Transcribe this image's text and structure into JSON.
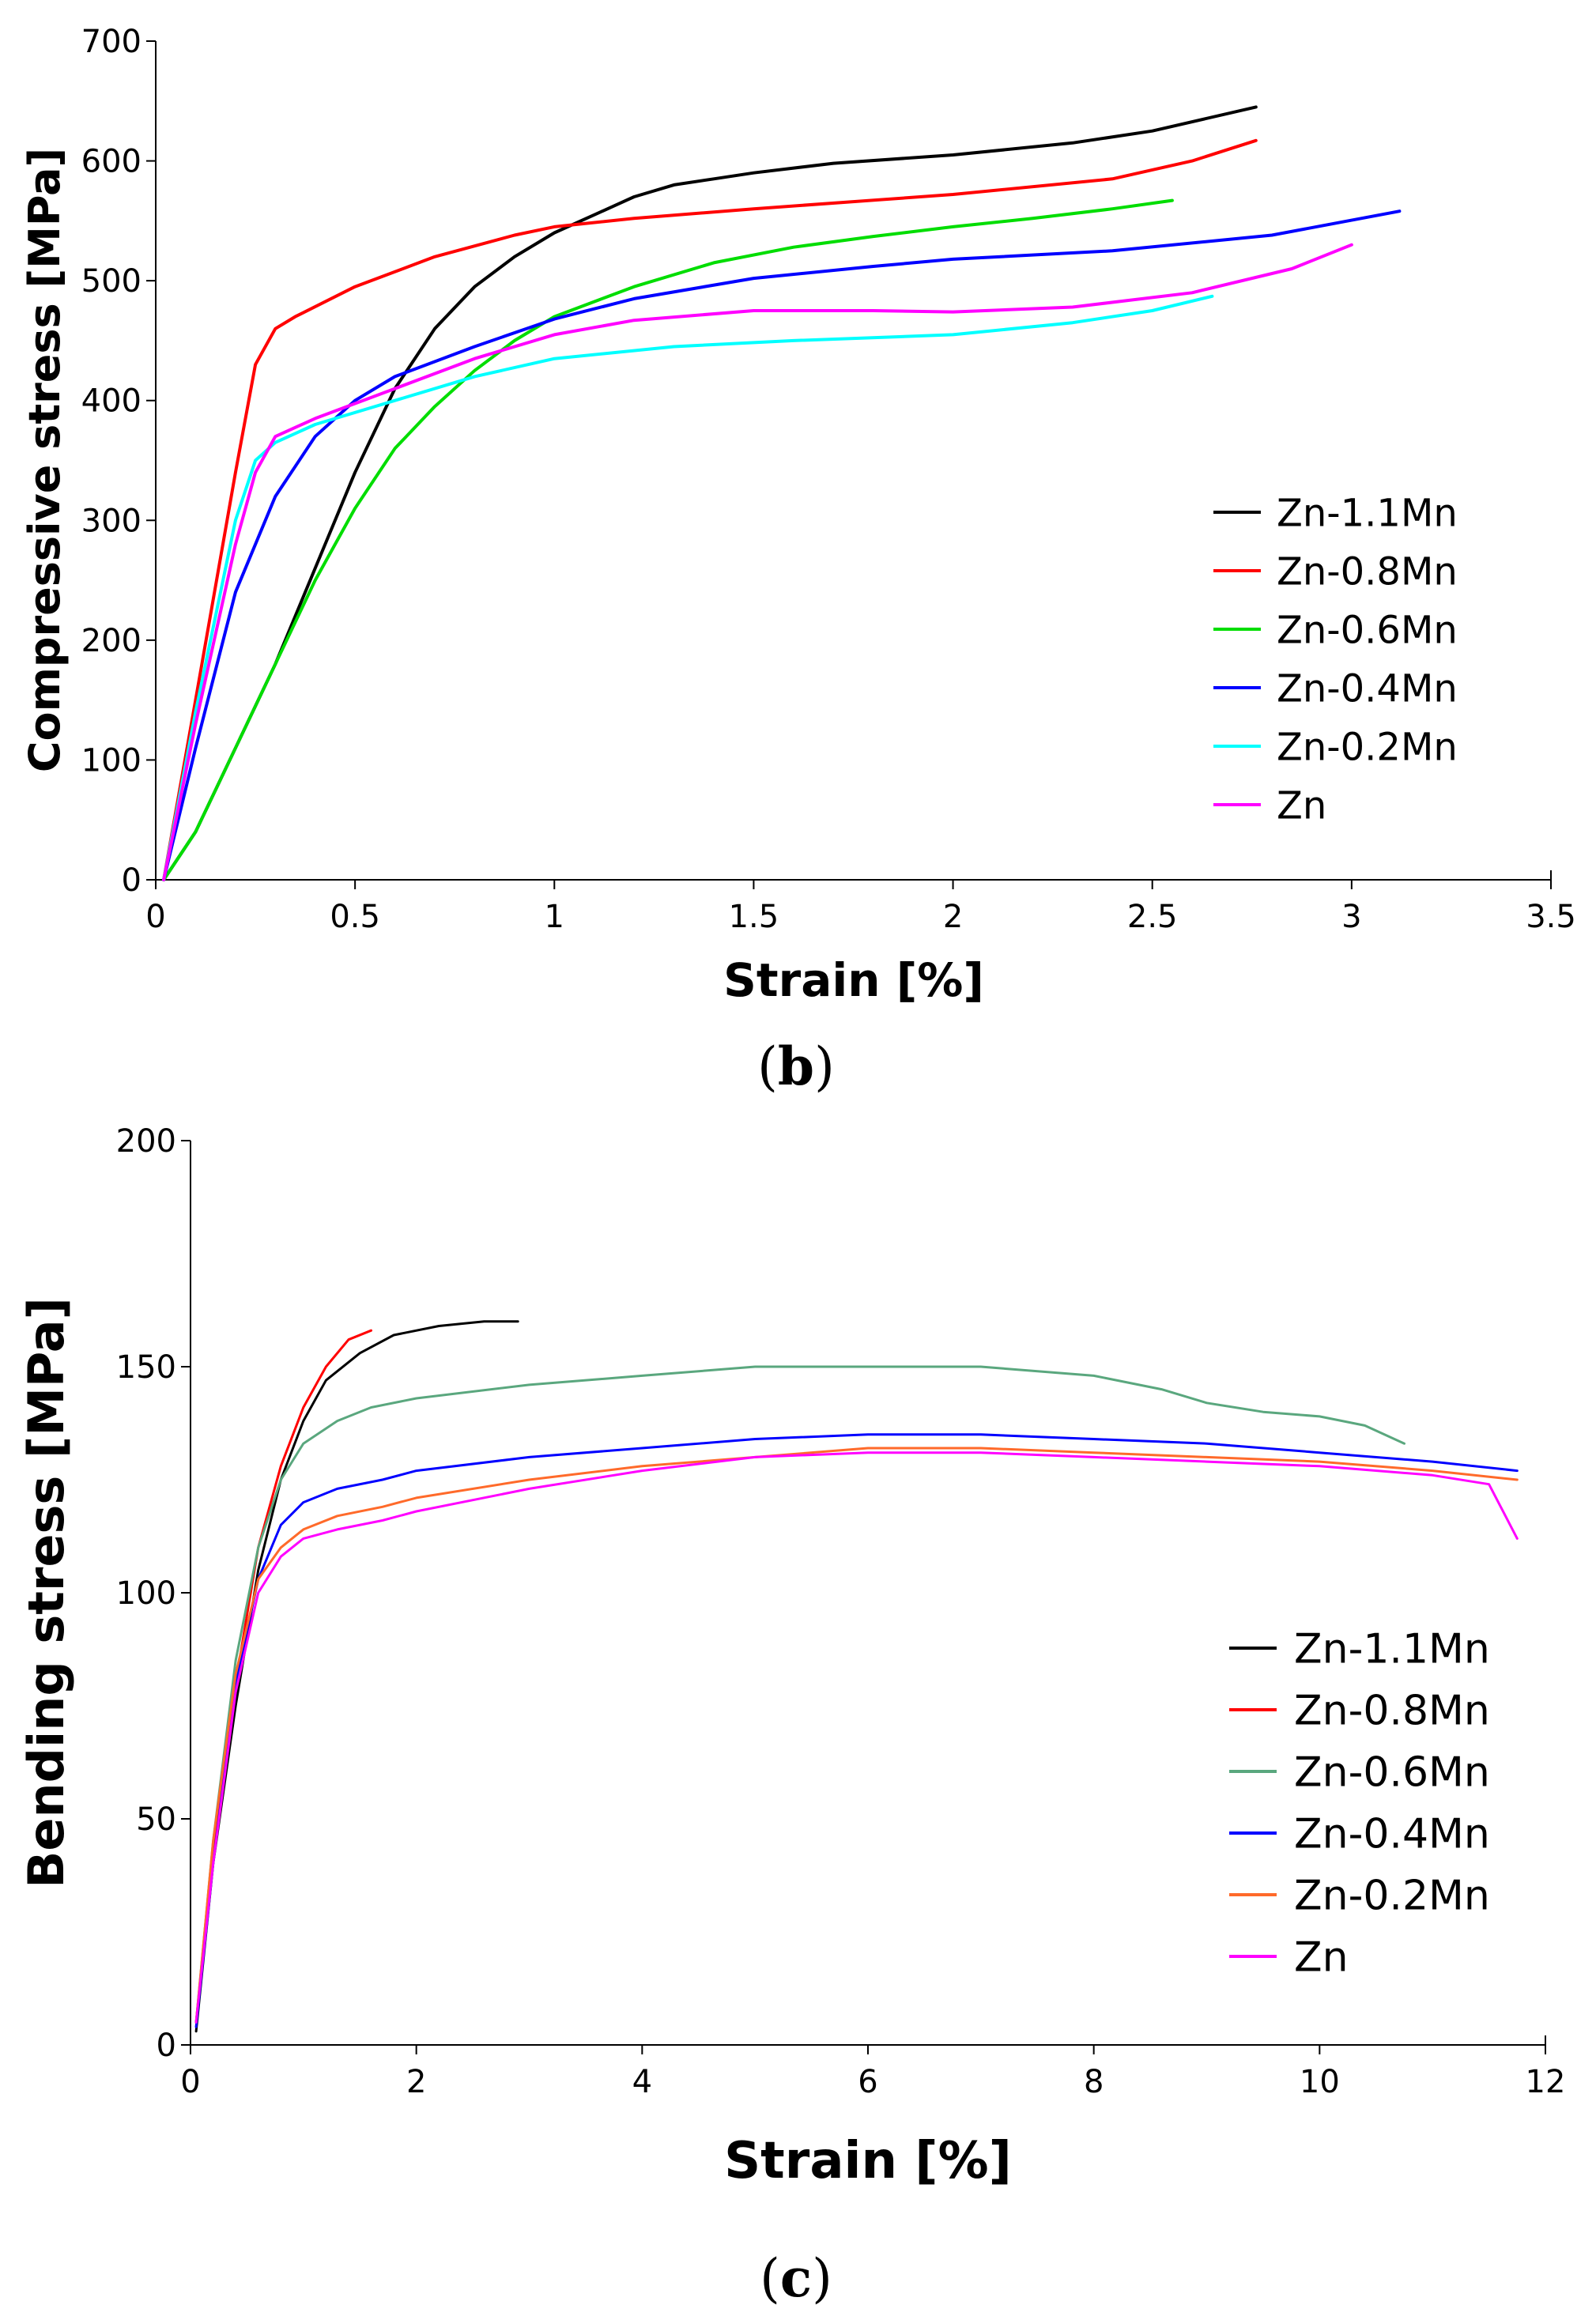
{
  "charts": [
    {
      "id": "b",
      "chart_data": {
        "type": "line",
        "title": "",
        "caption_open": "(",
        "caption_letter": "b",
        "caption_close": ")",
        "xlabel": "Strain [%]",
        "ylabel": "Compressive stress [MPa]",
        "xlim": [
          0,
          3.5
        ],
        "ylim": [
          0,
          700
        ],
        "xticks": [
          0,
          0.5,
          1,
          1.5,
          2,
          2.5,
          3,
          3.5
        ],
        "xtick_labels": [
          "0",
          "0.5",
          "1",
          "1.5",
          "2",
          "2.5",
          "3",
          "3.5"
        ],
        "yticks": [
          0,
          100,
          200,
          300,
          400,
          500,
          600,
          700
        ],
        "ytick_labels": [
          "0",
          "100",
          "200",
          "300",
          "400",
          "500",
          "600",
          "700"
        ],
        "legend_position": "center-right",
        "series": [
          {
            "name": "Zn-1.1Mn",
            "color": "#000000",
            "x": [
              0.02,
              0.1,
              0.2,
              0.3,
              0.4,
              0.5,
              0.6,
              0.7,
              0.8,
              0.9,
              1.0,
              1.1,
              1.2,
              1.3,
              1.4,
              1.5,
              1.7,
              2.0,
              2.3,
              2.5,
              2.76
            ],
            "y": [
              0,
              40,
              110,
              180,
              260,
              340,
              410,
              460,
              495,
              520,
              540,
              555,
              570,
              580,
              585,
              590,
              598,
              605,
              615,
              625,
              645
            ]
          },
          {
            "name": "Zn-0.8Mn",
            "color": "#ff0000",
            "x": [
              0.02,
              0.1,
              0.2,
              0.25,
              0.3,
              0.35,
              0.5,
              0.7,
              0.9,
              1.0,
              1.2,
              1.5,
              2.0,
              2.4,
              2.6,
              2.76
            ],
            "y": [
              0,
              150,
              340,
              430,
              460,
              470,
              495,
              520,
              538,
              545,
              552,
              560,
              572,
              585,
              600,
              617
            ]
          },
          {
            "name": "Zn-0.6Mn",
            "color": "#00dd00",
            "x": [
              0.02,
              0.1,
              0.2,
              0.3,
              0.4,
              0.5,
              0.6,
              0.7,
              0.8,
              0.9,
              1.0,
              1.2,
              1.4,
              1.6,
              1.8,
              2.0,
              2.2,
              2.4,
              2.55
            ],
            "y": [
              0,
              40,
              110,
              180,
              250,
              310,
              360,
              395,
              425,
              450,
              470,
              495,
              515,
              528,
              537,
              545,
              552,
              560,
              567
            ]
          },
          {
            "name": "Zn-0.4Mn",
            "color": "#0000ff",
            "x": [
              0.02,
              0.1,
              0.2,
              0.3,
              0.4,
              0.5,
              0.6,
              0.8,
              1.0,
              1.2,
              1.5,
              1.8,
              2.0,
              2.4,
              2.8,
              3.12
            ],
            "y": [
              0,
              110,
              240,
              320,
              370,
              400,
              420,
              445,
              468,
              485,
              502,
              512,
              518,
              525,
              538,
              558
            ]
          },
          {
            "name": "Zn-0.2Mn",
            "color": "#00ffff",
            "x": [
              0.02,
              0.1,
              0.2,
              0.25,
              0.3,
              0.4,
              0.6,
              0.8,
              1.0,
              1.3,
              1.6,
              2.0,
              2.3,
              2.5,
              2.65
            ],
            "y": [
              0,
              140,
              300,
              350,
              365,
              380,
              400,
              420,
              435,
              445,
              450,
              455,
              465,
              475,
              487
            ]
          },
          {
            "name": "Zn",
            "color": "#ff00ff",
            "x": [
              0.02,
              0.1,
              0.2,
              0.25,
              0.3,
              0.4,
              0.6,
              0.8,
              1.0,
              1.2,
              1.5,
              1.8,
              2.0,
              2.3,
              2.6,
              2.85,
              3.0
            ],
            "y": [
              0,
              130,
              280,
              340,
              370,
              385,
              410,
              435,
              455,
              467,
              475,
              475,
              474,
              478,
              490,
              510,
              530
            ]
          }
        ]
      }
    },
    {
      "id": "c",
      "chart_data": {
        "type": "line",
        "title": "",
        "caption_open": "(",
        "caption_letter": "c",
        "caption_close": ")",
        "xlabel": "Strain [%]",
        "ylabel": "Bending stress [MPa]",
        "xlim": [
          0,
          12
        ],
        "ylim": [
          0,
          200
        ],
        "xticks": [
          0,
          2,
          4,
          6,
          8,
          10,
          12
        ],
        "xtick_labels": [
          "0",
          "2",
          "4",
          "6",
          "8",
          "10",
          "12"
        ],
        "yticks": [
          0,
          50,
          100,
          150,
          200
        ],
        "ytick_labels": [
          "0",
          "50",
          "100",
          "150",
          "200"
        ],
        "legend_position": "center-right",
        "series": [
          {
            "name": "Zn-1.1Mn",
            "color": "#000000",
            "x": [
              0.05,
              0.2,
              0.4,
              0.6,
              0.8,
              1.0,
              1.2,
              1.5,
              1.8,
              2.2,
              2.6,
              2.9
            ],
            "y": [
              3,
              40,
              75,
              105,
              125,
              138,
              147,
              153,
              157,
              159,
              160,
              160
            ]
          },
          {
            "name": "Zn-0.8Mn",
            "color": "#ff0000",
            "x": [
              0.05,
              0.2,
              0.4,
              0.6,
              0.8,
              1.0,
              1.2,
              1.4,
              1.6
            ],
            "y": [
              5,
              42,
              80,
              110,
              128,
              141,
              150,
              156,
              158
            ]
          },
          {
            "name": "Zn-0.6Mn",
            "color": "#5aa77e",
            "x": [
              0.05,
              0.2,
              0.4,
              0.6,
              0.8,
              1.0,
              1.3,
              1.6,
              2.0,
              3.0,
              4.0,
              5.0,
              6.0,
              7.0,
              8.0,
              8.6,
              9.0,
              9.5,
              10.0,
              10.4,
              10.75
            ],
            "y": [
              5,
              45,
              85,
              110,
              125,
              133,
              138,
              141,
              143,
              146,
              148,
              150,
              150,
              150,
              148,
              145,
              142,
              140,
              139,
              137,
              133
            ]
          },
          {
            "name": "Zn-0.4Mn",
            "color": "#0000ff",
            "x": [
              0.05,
              0.2,
              0.4,
              0.6,
              0.8,
              1.0,
              1.3,
              1.7,
              2.0,
              3.0,
              4.0,
              5.0,
              6.0,
              7.0,
              8.0,
              9.0,
              10.0,
              11.0,
              11.75
            ],
            "y": [
              4,
              40,
              80,
              103,
              115,
              120,
              123,
              125,
              127,
              130,
              132,
              134,
              135,
              135,
              134,
              133,
              131,
              129,
              127
            ]
          },
          {
            "name": "Zn-0.2Mn",
            "color": "#ff6a2a",
            "x": [
              0.05,
              0.2,
              0.4,
              0.6,
              0.8,
              1.0,
              1.3,
              1.7,
              2.0,
              3.0,
              4.0,
              5.0,
              6.0,
              7.0,
              8.0,
              9.0,
              10.0,
              11.0,
              11.75
            ],
            "y": [
              5,
              45,
              82,
              103,
              110,
              114,
              117,
              119,
              121,
              125,
              128,
              130,
              132,
              132,
              131,
              130,
              129,
              127,
              125
            ]
          },
          {
            "name": "Zn",
            "color": "#ff00ff",
            "x": [
              0.05,
              0.2,
              0.4,
              0.6,
              0.8,
              1.0,
              1.3,
              1.7,
              2.0,
              3.0,
              4.0,
              5.0,
              6.0,
              7.0,
              8.0,
              9.0,
              10.0,
              11.0,
              11.5,
              11.75
            ],
            "y": [
              5,
              40,
              78,
              100,
              108,
              112,
              114,
              116,
              118,
              123,
              127,
              130,
              131,
              131,
              130,
              129,
              128,
              126,
              124,
              112
            ]
          }
        ]
      }
    }
  ]
}
